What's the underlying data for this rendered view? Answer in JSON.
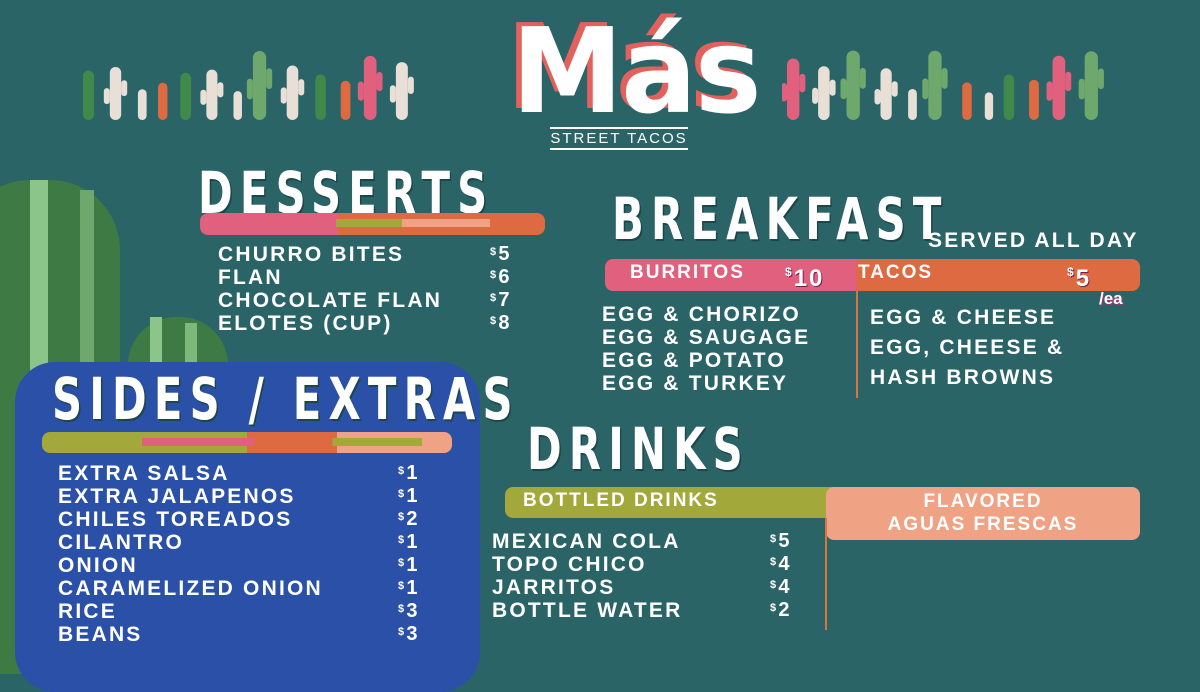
{
  "logo": {
    "name": "Más",
    "tagline": "STREET TACOS"
  },
  "colors": {
    "background": "#2b6467",
    "pink": "#e0607e",
    "orange": "#dd6a40",
    "green": "#a3a83b",
    "peach": "#f0a384",
    "blue": "#2a50a8",
    "logo_shadow": "#e4605c"
  },
  "desserts": {
    "title": "DESSERTS",
    "items": [
      {
        "name": "CHURRO BITES",
        "price": "5"
      },
      {
        "name": "FLAN",
        "price": "6"
      },
      {
        "name": "CHOCOLATE FLAN",
        "price": "7"
      },
      {
        "name": "ELOTES (CUP)",
        "price": "8"
      }
    ]
  },
  "breakfast": {
    "title": "BREAKFAST",
    "subtitle": "SERVED ALL DAY",
    "burritos": {
      "label": "BURRITOS",
      "price": "10",
      "items": [
        "EGG & CHORIZO",
        "EGG & SAUGAGE",
        "EGG & POTATO",
        "EGG & TURKEY"
      ]
    },
    "tacos": {
      "label": "TACOS",
      "price": "5",
      "unit": "/ea",
      "items": [
        "EGG & CHEESE",
        "EGG, CHEESE &",
        "HASH BROWNS"
      ]
    }
  },
  "sides": {
    "title": "SIDES / EXTRAS",
    "items": [
      {
        "name": "EXTRA SALSA",
        "price": "1"
      },
      {
        "name": "EXTRA JALAPENOS",
        "price": "1"
      },
      {
        "name": "CHILES TOREADOS",
        "price": "2"
      },
      {
        "name": "CILANTRO",
        "price": "1"
      },
      {
        "name": "ONION",
        "price": "1"
      },
      {
        "name": "CARAMELIZED ONION",
        "price": "1"
      },
      {
        "name": "RICE",
        "price": "3"
      },
      {
        "name": "BEANS",
        "price": "3"
      }
    ]
  },
  "drinks": {
    "title": "DRINKS",
    "bottled": {
      "label": "BOTTLED DRINKS",
      "items": [
        {
          "name": "MEXICAN COLA",
          "price": "5"
        },
        {
          "name": "TOPO CHICO",
          "price": "4"
        },
        {
          "name": "JARRITOS",
          "price": "4"
        },
        {
          "name": "BOTTLE WATER",
          "price": "2"
        }
      ]
    },
    "aguas": {
      "label_line1": "FLAVORED",
      "label_line2": "AGUAS FRESCAS"
    }
  },
  "currency": "$"
}
